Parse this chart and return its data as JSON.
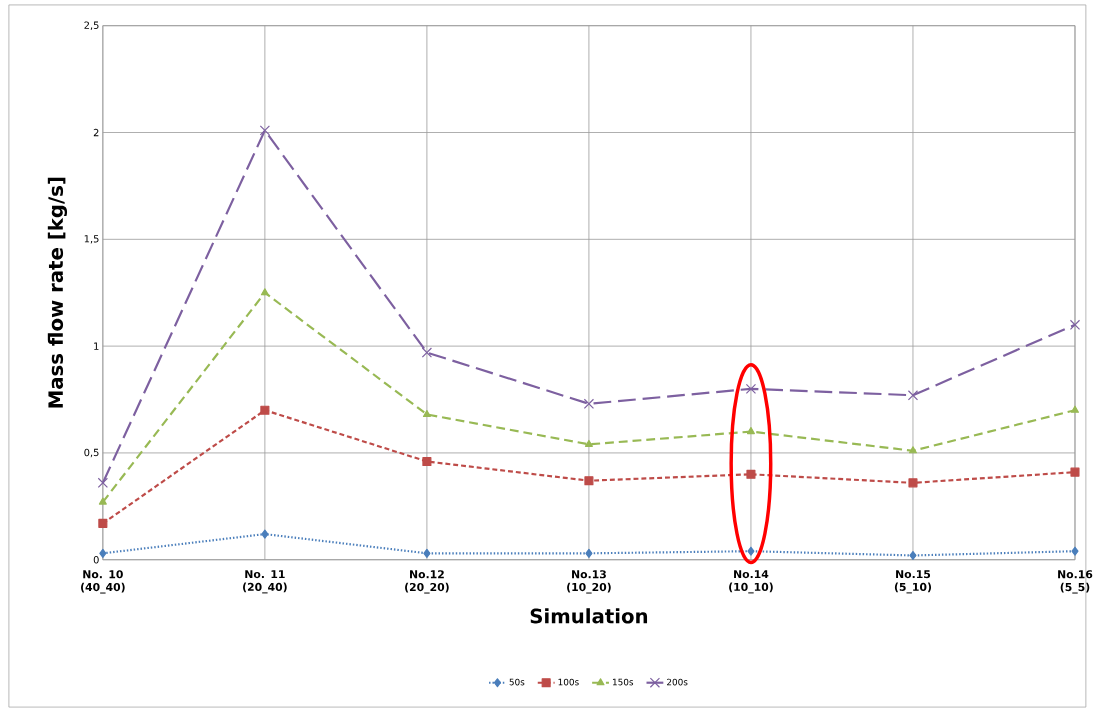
{
  "chart_data": {
    "type": "line",
    "xlabel": "Simulation",
    "ylabel": "Mass flow rate [kg/s]",
    "categories": [
      "No. 10 (40_40)",
      "No. 11 (20_40)",
      "No.12 (20_20)",
      "No.13 (10_20)",
      "No.14 (10_10)",
      "No.15 (5_10)",
      "No.16 (5_5)"
    ],
    "series": [
      {
        "name": "50s",
        "color": "#4a7ebb",
        "marker": "diamond",
        "line_style": "dotted",
        "values": [
          0.03,
          0.12,
          0.03,
          0.03,
          0.04,
          0.02,
          0.04
        ]
      },
      {
        "name": "100s",
        "color": "#be4b48",
        "marker": "square",
        "line_style": "dashed",
        "values": [
          0.17,
          0.7,
          0.46,
          0.37,
          0.4,
          0.36,
          0.41
        ]
      },
      {
        "name": "150s",
        "color": "#98b954",
        "marker": "triangle",
        "line_style": "dashed",
        "values": [
          0.27,
          1.25,
          0.68,
          0.54,
          0.6,
          0.51,
          0.7
        ]
      },
      {
        "name": "200s",
        "color": "#7d60a0",
        "marker": "cross",
        "line_style": "dashed",
        "values": [
          0.36,
          2.01,
          0.97,
          0.73,
          0.8,
          0.77,
          1.1
        ]
      }
    ],
    "ylim": [
      0,
      2.5
    ],
    "yticks": [
      0,
      {
        "value": 0.5,
        "label": "0,5"
      },
      1,
      {
        "value": 1.5,
        "label": "1,5"
      },
      2,
      {
        "value": 2.5,
        "label": "2,5"
      }
    ],
    "grid": true,
    "legend": "bottom"
  }
}
